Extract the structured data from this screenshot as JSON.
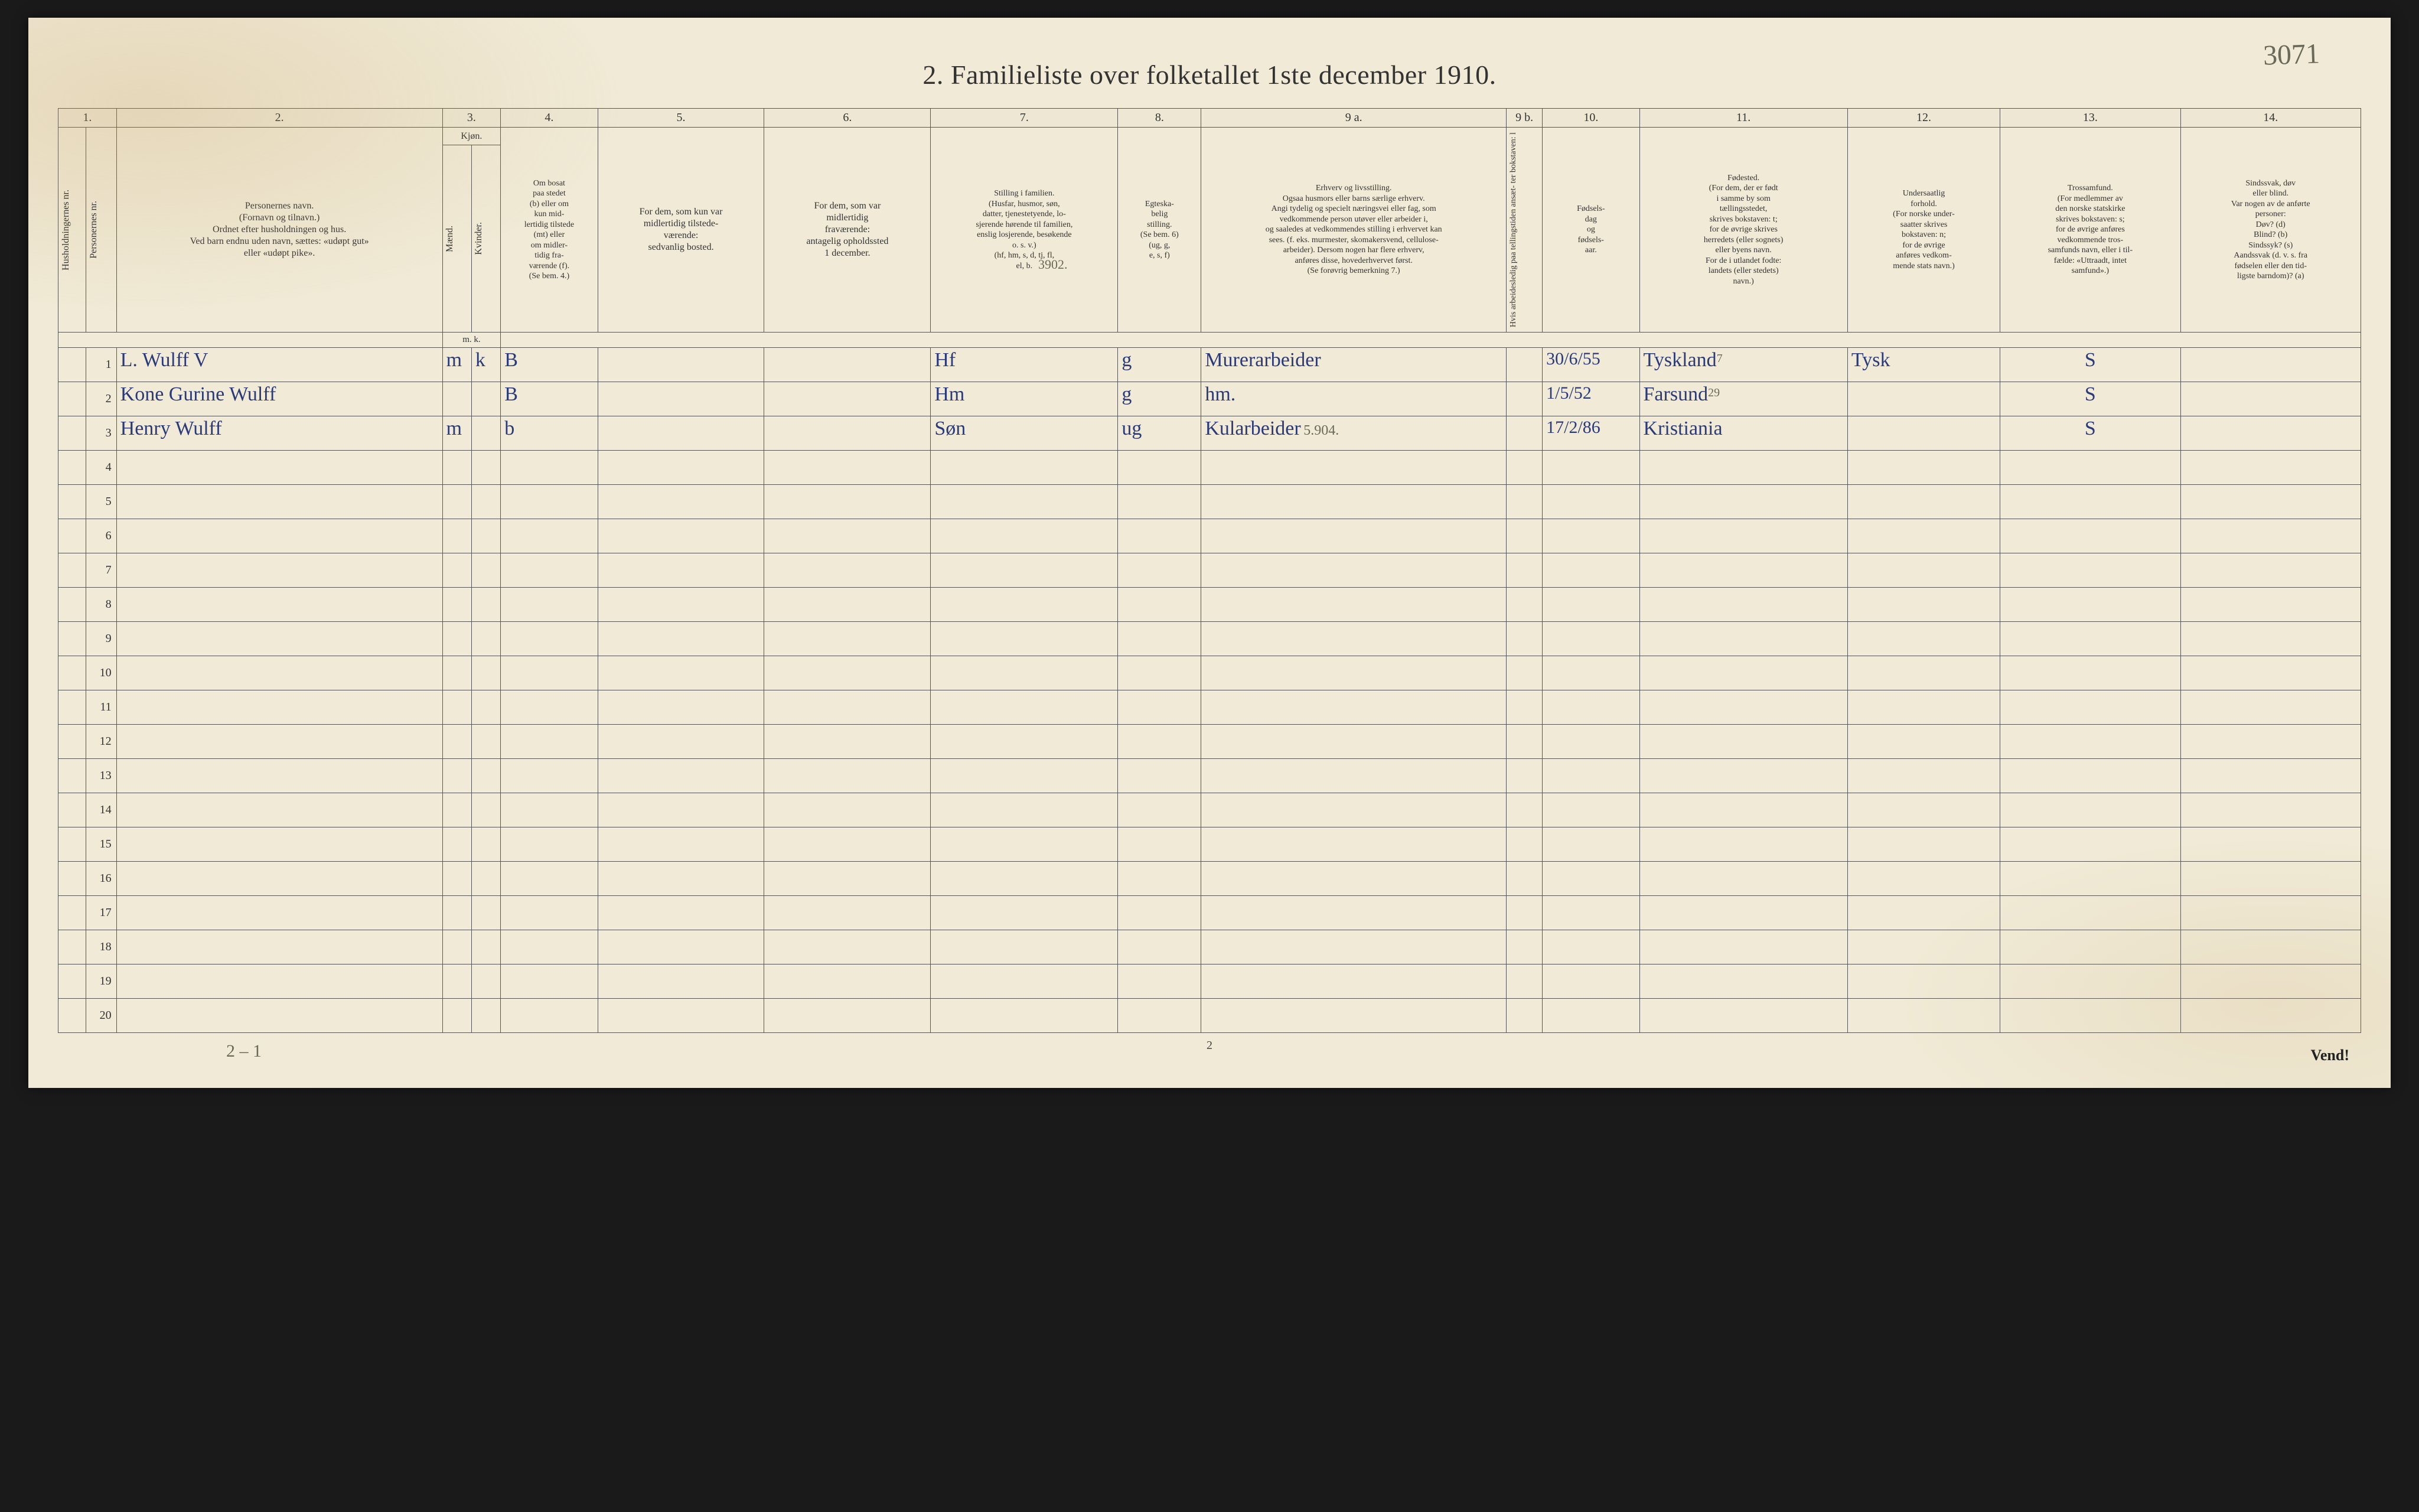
{
  "title": "2.   Familieliste over folketallet 1ste december 1910.",
  "handwritten_top_right": "3071",
  "page_number_bottom": "2",
  "vend_label": "Vend!",
  "bottom_annotation": "2 – 1",
  "column_numbers": [
    "1.",
    "2.",
    "3.",
    "4.",
    "5.",
    "6.",
    "7.",
    "8.",
    "9 a.",
    "9 b.",
    "10.",
    "11.",
    "12.",
    "13.",
    "14."
  ],
  "headers": {
    "c1": "Husholdningernes nr.",
    "c2": "Personernes nr.",
    "c3": "Personernes navn.\n(Fornavn og tilnavn.)\nOrdnet efter husholdningen og hus.\nVed barn endnu uden navn, sættes: «udøpt gut»\neller «udøpt pike».",
    "c4_group": "Kjøn.",
    "c4a": "Mænd.",
    "c4b": "Kvinder.",
    "c4_sub": "m.  k.",
    "c5": "Om bosat\npaa stedet\n(b) eller om\nkun mid-\nlertidig tilstede\n(mt) eller\nom midler-\ntidig fra-\nværende (f).\n(Se bem. 4.)",
    "c6": "For dem, som kun var\nmidlertidig tilstede-\nværende:\nsedvanlig bosted.",
    "c7": "For dem, som var\nmidlertidig\nfraværende:\nantagelig opholdssted\n1 december.",
    "c8": "Stilling i familien.\n(Husfar, husmor, søn,\ndatter, tjenestetyende, lo-\nsjerende hørende til familien,\nenslig losjerende, besøkende\no. s. v.)\n(hf, hm, s, d, tj, fl,\nel, b.",
    "c9": "Egteska-\nbelig\nstilling.\n(Se bem. 6)\n(ug, g,\ne, s, f)",
    "c10": "Erhverv og livsstilling.\nOgsaa husmors eller barns særlige erhverv.\nAngi tydelig og specielt næringsvei eller fag, som\nvedkommende person utøver eller arbeider i,\nog saaledes at vedkommendes stilling i erhvervet kan\nsees. (f. eks. murmester, skomakersvend, cellulose-\narbeider). Dersom nogen har flere erhverv,\nanføres disse, hovederhvervet først.\n(Se forøvrig bemerkning 7.)",
    "c11": "Hvis arbeidesledig\npaa tellingstiden ansæt-\nter bokstaven: l",
    "c12": "Fødsels-\ndag\nog\nfødsels-\naar.",
    "c13": "Fødested.\n(For dem, der er født\ni samme by som\ntællingsstedet,\nskrives bokstaven: t;\nfor de øvrige skrives\nherredets (eller sognets)\neller byens navn.\nFor de i utlandet fodte:\nlandets (eller stedets)\nnavn.)",
    "c14": "Undersaatlig\nforhold.\n(For norske under-\nsaatter skrives\nbokstaven: n;\nfor de øvrige\nanføres vedkom-\nmende stats navn.)",
    "c15": "Trossamfund.\n(For medlemmer av\nden norske statskirke\nskrives bokstaven: s;\nfor de øvrige anføres\nvedkommende tros-\nsamfunds navn, eller i til-\nfælde: «Uttraadt, intet\nsamfund».)",
    "c16": "Sindssvak, døv\neller blind.\nVar nogen av de anførte\npersoner:\nDøv?        (d)\nBlind?       (b)\nSindssyk?  (s)\nAandssvak (d. v. s. fra\nfødselen eller den tid-\nligste barndom)? (a)"
  },
  "annotation_above_row1": "3902.",
  "rows": [
    {
      "num": "1",
      "name": "L. Wulff               V",
      "sex_m": "m",
      "sex_k": "k",
      "residence": "B",
      "family_pos": "Hf",
      "marital": "g",
      "occupation": "Murerarbeider",
      "birth": "30/6/55",
      "birthplace": "Tyskland",
      "birthplace_sup": "7",
      "nationality": "Tysk",
      "faith": "S"
    },
    {
      "num": "2",
      "name": "Kone Gurine Wulff",
      "sex_m": "",
      "sex_k": "",
      "residence": "B",
      "family_pos": "Hm",
      "marital": "g",
      "occupation": "hm.",
      "birth": "1/5/52",
      "birthplace": "Farsund",
      "birthplace_sup": "29",
      "nationality": "",
      "faith": "S"
    },
    {
      "num": "3",
      "name": "Henry Wulff",
      "sex_m": "m",
      "sex_k": "",
      "residence": "b",
      "family_pos": "Søn",
      "marital": "ug",
      "occupation": "Kularbeider",
      "occupation_note": "5.904.",
      "birth": "17/2/86",
      "birthplace": "Kristiania",
      "nationality": "",
      "faith": "S"
    }
  ],
  "empty_rows": [
    "4",
    "5",
    "6",
    "7",
    "8",
    "9",
    "10",
    "11",
    "12",
    "13",
    "14",
    "15",
    "16",
    "17",
    "18",
    "19",
    "20"
  ],
  "colors": {
    "paper": "#f0ead6",
    "ink": "#333333",
    "handwriting_blue": "#2a3a7a",
    "handwriting_pencil": "#6a6a5a",
    "border": "#555555",
    "background": "#1a1a1a"
  },
  "typography": {
    "title_size_pt": 34,
    "header_size_pt": 12,
    "handwriting_size_pt": 26
  }
}
